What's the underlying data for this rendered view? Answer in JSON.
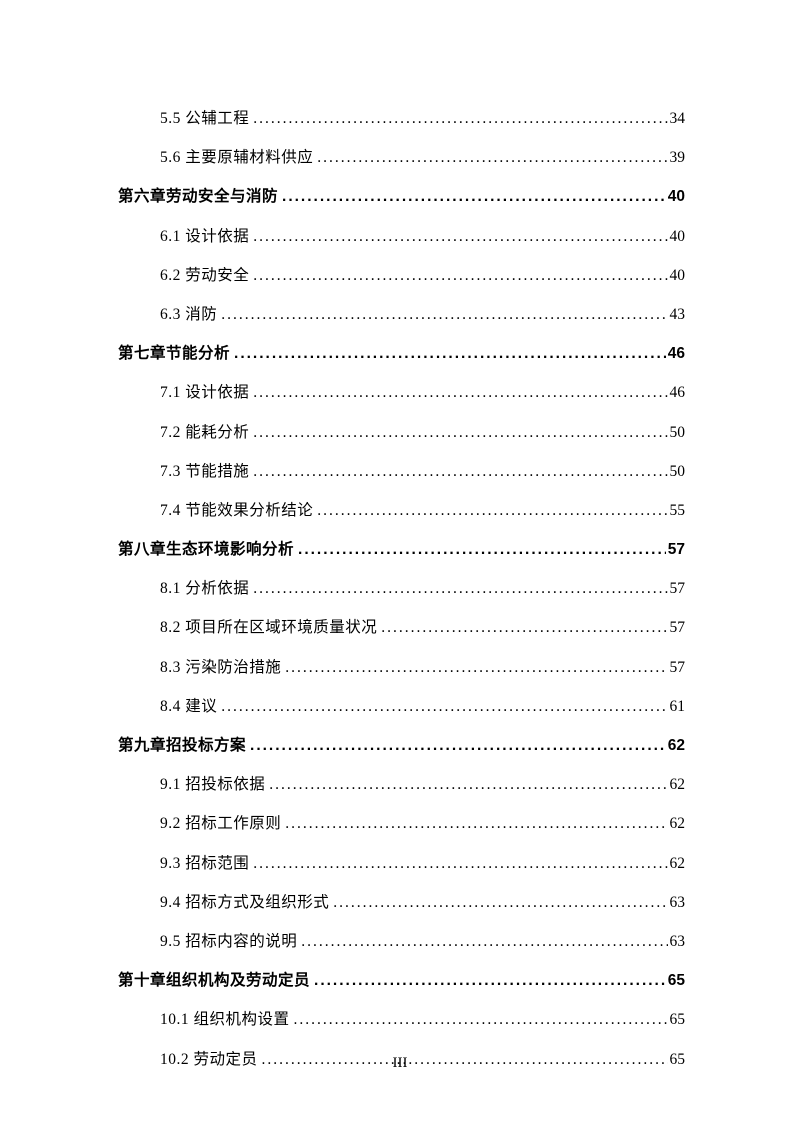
{
  "toc": [
    {
      "level": "section",
      "title": "5.5 公辅工程",
      "page": "34"
    },
    {
      "level": "section",
      "title": "5.6 主要原辅材料供应",
      "page": "39"
    },
    {
      "level": "chapter",
      "title": "第六章劳动安全与消防",
      "page": "40"
    },
    {
      "level": "section",
      "title": "6.1 设计依据",
      "page": "40"
    },
    {
      "level": "section",
      "title": "6.2 劳动安全",
      "page": "40"
    },
    {
      "level": "section",
      "title": "6.3 消防",
      "page": "43"
    },
    {
      "level": "chapter",
      "title": "第七章节能分析",
      "page": "46"
    },
    {
      "level": "section",
      "title": "7.1 设计依据",
      "page": "46"
    },
    {
      "level": "section",
      "title": "7.2 能耗分析",
      "page": "50"
    },
    {
      "level": "section",
      "title": "7.3 节能措施",
      "page": "50"
    },
    {
      "level": "section",
      "title": "7.4 节能效果分析结论",
      "page": "55"
    },
    {
      "level": "chapter",
      "title": "第八章生态环境影响分析",
      "page": "57"
    },
    {
      "level": "section",
      "title": "8.1 分析依据",
      "page": "57"
    },
    {
      "level": "section",
      "title": "8.2 项目所在区域环境质量状况",
      "page": "57"
    },
    {
      "level": "section",
      "title": "8.3 污染防治措施",
      "page": "57"
    },
    {
      "level": "section",
      "title": "8.4 建议",
      "page": "61"
    },
    {
      "level": "chapter",
      "title": "第九章招投标方案",
      "page": "62"
    },
    {
      "level": "section",
      "title": "9.1 招投标依据",
      "page": "62"
    },
    {
      "level": "section",
      "title": "9.2 招标工作原则",
      "page": "62"
    },
    {
      "level": "section",
      "title": "9.3 招标范围",
      "page": "62"
    },
    {
      "level": "section",
      "title": "9.4 招标方式及组织形式",
      "page": "63"
    },
    {
      "level": "section",
      "title": "9.5 招标内容的说明",
      "page": "63"
    },
    {
      "level": "chapter",
      "title": "第十章组织机构及劳动定员",
      "page": "65"
    },
    {
      "level": "section",
      "title": "10.1 组织机构设置",
      "page": "65"
    },
    {
      "level": "section",
      "title": "10.2 劳动定员",
      "page": "65"
    }
  ],
  "pageNumber": "III",
  "dotLeader": "......................................................................................................................",
  "colors": {
    "text": "#000000",
    "background": "#ffffff"
  }
}
